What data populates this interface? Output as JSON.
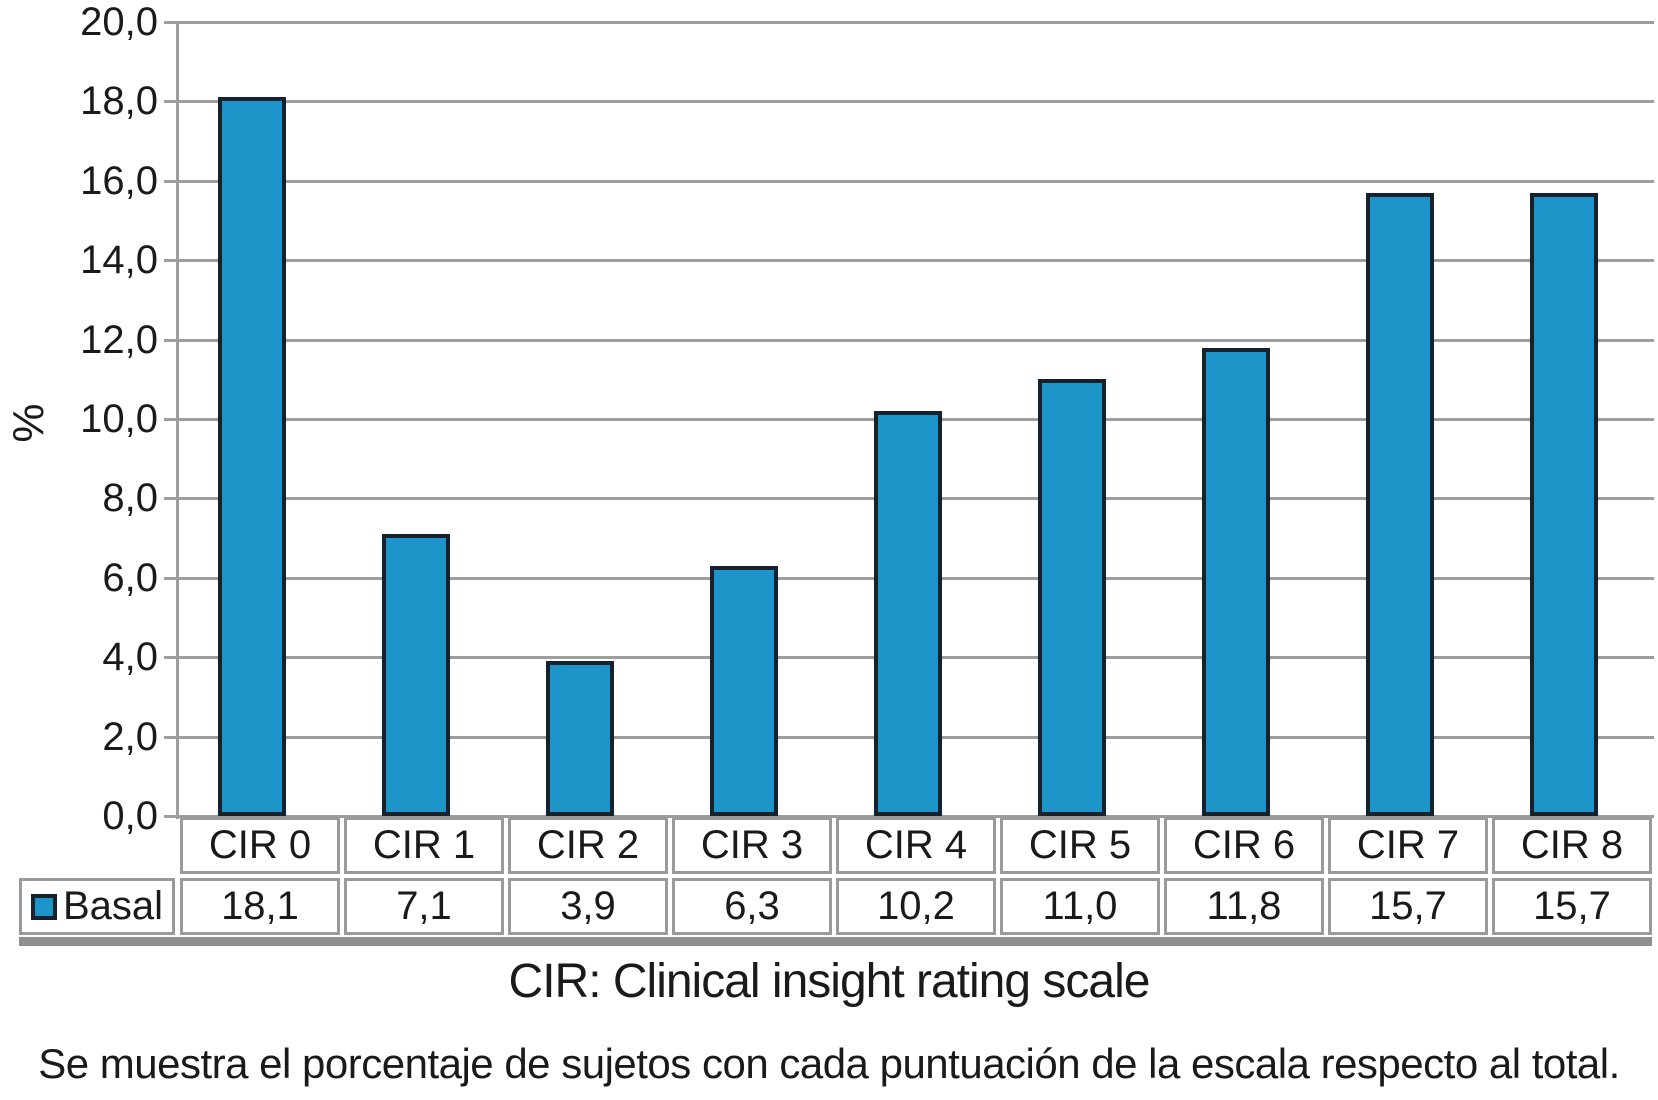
{
  "chart_data": {
    "type": "bar",
    "categories": [
      "CIR 0",
      "CIR 1",
      "CIR 2",
      "CIR 3",
      "CIR 4",
      "CIR 5",
      "CIR 6",
      "CIR 7",
      "CIR 8"
    ],
    "series": [
      {
        "name": "Basal",
        "values": [
          18.1,
          7.1,
          3.9,
          6.3,
          10.2,
          11.0,
          11.8,
          15.7,
          15.7
        ],
        "value_labels": [
          "18,1",
          "7,1",
          "3,9",
          "6,3",
          "10,2",
          "11,0",
          "11,8",
          "15,7",
          "15,7"
        ]
      }
    ],
    "title": "",
    "xlabel": "",
    "ylabel": "%",
    "ylim": [
      0,
      20
    ],
    "ytick_step": 2,
    "ytick_labels": [
      "20,0",
      "18,0",
      "16,0",
      "14,0",
      "12,0",
      "10,0",
      "8,0",
      "6,0",
      "4,0",
      "2,0",
      "0,0"
    ],
    "grid": true,
    "legend_position": "table-row-header",
    "colors": {
      "bar_fill": "#1e95c8",
      "bar_border": "#15212c",
      "gridline": "#9e9e9e",
      "table_border": "#9a9a9a"
    }
  },
  "footer": {
    "caption": "CIR: Clinical insight rating scale",
    "note": "Se muestra el porcentaje de sujetos con cada puntuación de la escala respecto al total."
  }
}
